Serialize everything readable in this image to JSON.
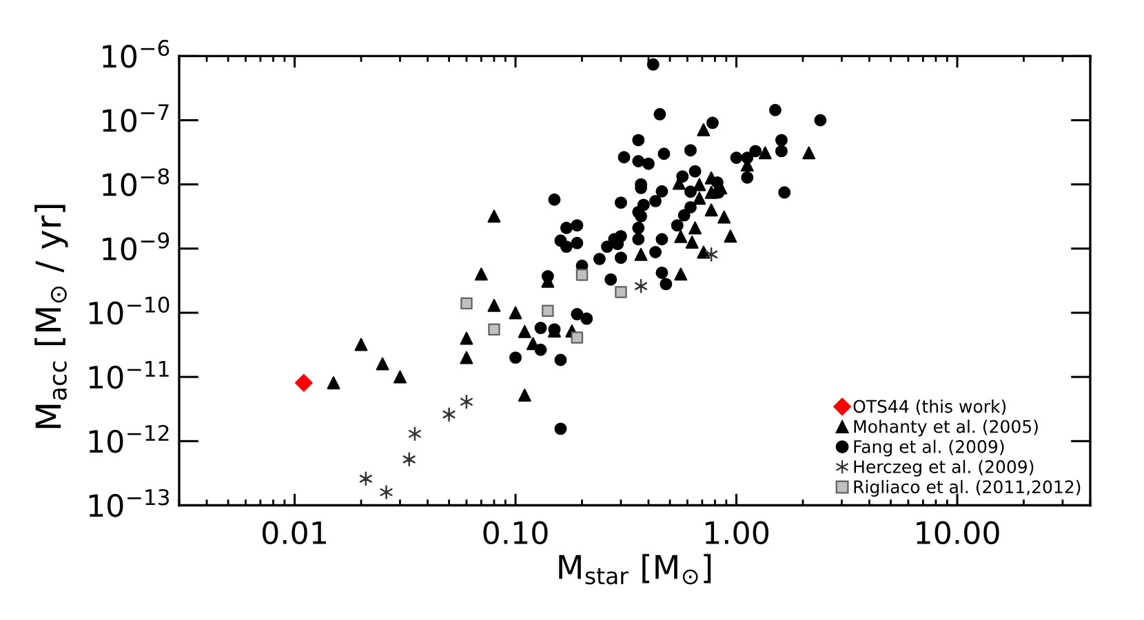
{
  "chart_data": {
    "type": "scatter",
    "xlabel": "M$_{star}$ [M$_{⊙}$]",
    "ylabel": "M$_{acc}$ [M$_{⊙}$ / yr]",
    "log": "xy",
    "xlim": [
      0.003,
      40
    ],
    "ylim": [
      1e-13,
      1e-06
    ],
    "xticks": [
      {
        "value": 0.01,
        "label": "0.01"
      },
      {
        "value": 0.1,
        "label": "0.10"
      },
      {
        "value": 1,
        "label": "1.00"
      },
      {
        "value": 10,
        "label": "10.00"
      }
    ],
    "yticks": [
      {
        "value": 1e-13,
        "label": "10$^{−13}$"
      },
      {
        "value": 1e-12,
        "label": "10$^{−12}$"
      },
      {
        "value": 1e-11,
        "label": "10$^{−11}$"
      },
      {
        "value": 1e-10,
        "label": "10$^{−10}$"
      },
      {
        "value": 1e-09,
        "label": "10$^{−9}$"
      },
      {
        "value": 1e-08,
        "label": "10$^{−8}$"
      },
      {
        "value": 1e-07,
        "label": "10$^{−7}$"
      },
      {
        "value": 1e-06,
        "label": "10$^{−6}$"
      }
    ],
    "legend": "bottom right",
    "series": [
      {
        "name": "OTS44 (this work)",
        "color": "#ff0000",
        "marker": "diamond",
        "x": [
          0.011
        ],
        "values": [
          8.1e-12
        ]
      },
      {
        "name": "Mohanty et al. (2005)",
        "color": "#000000",
        "marker": "triangle",
        "x": [
          0.015,
          0.02,
          0.025,
          0.03,
          0.06,
          0.06,
          0.07,
          0.08,
          0.08,
          0.1,
          0.11,
          0.11,
          0.12,
          0.14,
          0.15,
          0.18,
          0.37,
          0.55,
          0.56,
          0.56,
          0.71,
          0.68,
          0.77,
          0.85,
          0.77,
          0.68,
          0.77,
          0.88,
          0.65,
          0.63,
          0.94,
          0.71,
          1.12,
          1.35,
          2.13
        ],
        "values": [
          8.1e-12,
          3.2e-11,
          1.6e-11,
          1e-11,
          4e-11,
          2e-11,
          4e-10,
          3.2e-09,
          1.3e-10,
          1e-10,
          5.1e-11,
          5.2e-12,
          3.3e-11,
          3.1e-10,
          5.2e-11,
          5.2e-11,
          8.1e-10,
          1.04e-08,
          1.54e-09,
          4e-10,
          7.1e-08,
          9.9e-09,
          1.26e-08,
          8.8e-09,
          7.5e-09,
          6.1e-09,
          4e-09,
          3.1e-09,
          2.1e-09,
          1.26e-09,
          1.56e-09,
          8.8e-10,
          2e-08,
          3.1e-08,
          3.1e-08
        ]
      },
      {
        "name": "Fang et al. (2009)",
        "color": "#000000",
        "marker": "circle",
        "x": [
          0.42,
          0.45,
          0.36,
          0.47,
          0.31,
          0.36,
          0.4,
          0.62,
          0.37,
          0.37,
          0.46,
          0.3,
          0.38,
          0.43,
          0.36,
          0.37,
          0.36,
          0.54,
          0.58,
          0.46,
          0.36,
          0.43,
          0.46,
          0.48,
          0.3,
          0.28,
          0.29,
          0.26,
          0.3,
          0.24,
          0.27,
          0.2,
          0.15,
          0.17,
          0.19,
          0.16,
          0.17,
          0.19,
          0.14,
          0.19,
          0.21,
          0.13,
          0.15,
          0.13,
          0.1,
          0.16,
          0.16,
          1.5,
          2.4,
          0.78,
          1.6,
          1.6,
          1.22,
          1.0,
          1.12,
          1.12,
          1.65,
          0.65,
          0.57,
          0.82,
          0.83,
          0.62,
          0.62
        ],
        "values": [
          7.4e-07,
          1.24e-07,
          4.9e-08,
          3e-08,
          2.65e-08,
          2.3e-08,
          2.1e-08,
          3.4e-08,
          1e-08,
          8.8e-09,
          7.8e-09,
          5.2e-09,
          4.8e-09,
          5.5e-09,
          3.7e-09,
          3.2e-09,
          2.1e-09,
          2.3e-09,
          3.3e-09,
          1.4e-09,
          1.4e-09,
          8.8e-10,
          4.2e-10,
          2.8e-10,
          1.56e-09,
          1.4e-09,
          1.18e-09,
          1.07e-09,
          7.2e-10,
          6.9e-10,
          3.3e-10,
          5.4e-10,
          5.8e-09,
          2.1e-09,
          2.3e-09,
          1.33e-09,
          1.07e-09,
          1.22e-09,
          3.7e-10,
          9.5e-11,
          8.1e-11,
          5.8e-11,
          5.5e-11,
          2.65e-11,
          2e-11,
          1.84e-11,
          1.56e-12,
          1.44e-07,
          1e-07,
          9.1e-08,
          4.9e-08,
          3.3e-08,
          3.3e-08,
          2.6e-08,
          2.6e-08,
          1.28e-08,
          7.5e-09,
          1.6e-08,
          1.33e-08,
          1.07e-08,
          7.5e-09,
          7.7e-09,
          4.4e-09
        ]
      },
      {
        "name": "Herczeg et al. (2009)",
        "color": "#333333",
        "marker": "cross",
        "x": [
          0.021,
          0.026,
          0.033,
          0.035,
          0.05,
          0.06,
          0.37,
          0.77
        ],
        "values": [
          2.6e-13,
          1.6e-13,
          5.2e-13,
          1.3e-12,
          2.6e-12,
          4.1e-12,
          2.6e-10,
          8.1e-10
        ]
      },
      {
        "name": "Rigliaco et al. (2011,2012)",
        "color": "#c0c0c0",
        "marker": "square",
        "x": [
          0.06,
          0.08,
          0.14,
          0.19,
          0.2,
          0.3
        ],
        "values": [
          1.4e-10,
          5.5e-11,
          1.07e-10,
          4.1e-11,
          3.9e-10,
          2.1e-10
        ]
      }
    ]
  }
}
